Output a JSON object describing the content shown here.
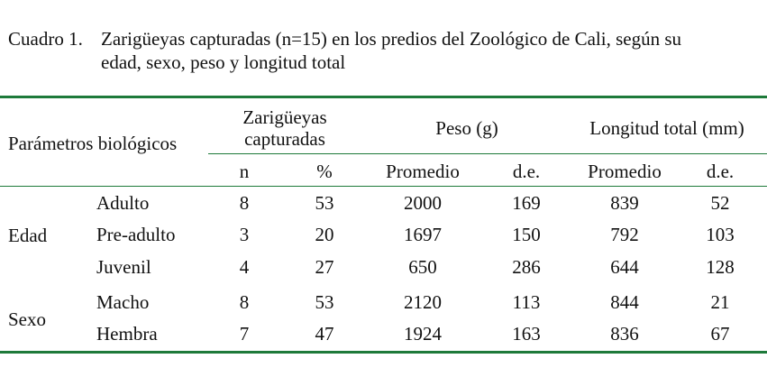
{
  "caption": {
    "label": "Cuadro 1.",
    "line1": "Zarigüeyas capturadas (n=15) en los predios del Zoológico de Cali, según su",
    "line2": "edad, sexo, peso y longitud total"
  },
  "header": {
    "parametros": "Parámetros biológicos",
    "capturadas_line1": "Zarigüeyas",
    "capturadas_line2": "capturadas",
    "peso": "Peso (g)",
    "longitud": "Longitud total (mm)",
    "n": "n",
    "pct": "%",
    "promedio_peso": "Promedio",
    "de_peso": "d.e.",
    "promedio_long": "Promedio",
    "de_long": "d.e."
  },
  "groups": [
    {
      "name": "Edad"
    },
    {
      "name": "Sexo"
    }
  ],
  "rows": [
    {
      "label": "Adulto",
      "n": "8",
      "pct": "53",
      "peso_prom": "2000",
      "peso_de": "169",
      "long_prom": "839",
      "long_de": "52"
    },
    {
      "label": "Pre-adulto",
      "n": "3",
      "pct": "20",
      "peso_prom": "1697",
      "peso_de": "150",
      "long_prom": "792",
      "long_de": "103"
    },
    {
      "label": "Juvenil",
      "n": "4",
      "pct": "27",
      "peso_prom": "650",
      "peso_de": "286",
      "long_prom": "644",
      "long_de": "128"
    },
    {
      "label": "Macho",
      "n": "8",
      "pct": "53",
      "peso_prom": "2120",
      "peso_de": "113",
      "long_prom": "844",
      "long_de": "21"
    },
    {
      "label": "Hembra",
      "n": "7",
      "pct": "47",
      "peso_prom": "1924",
      "peso_de": "163",
      "long_prom": "836",
      "long_de": "67"
    }
  ],
  "colors": {
    "rule": "#1e7a3a",
    "text": "#111111"
  }
}
